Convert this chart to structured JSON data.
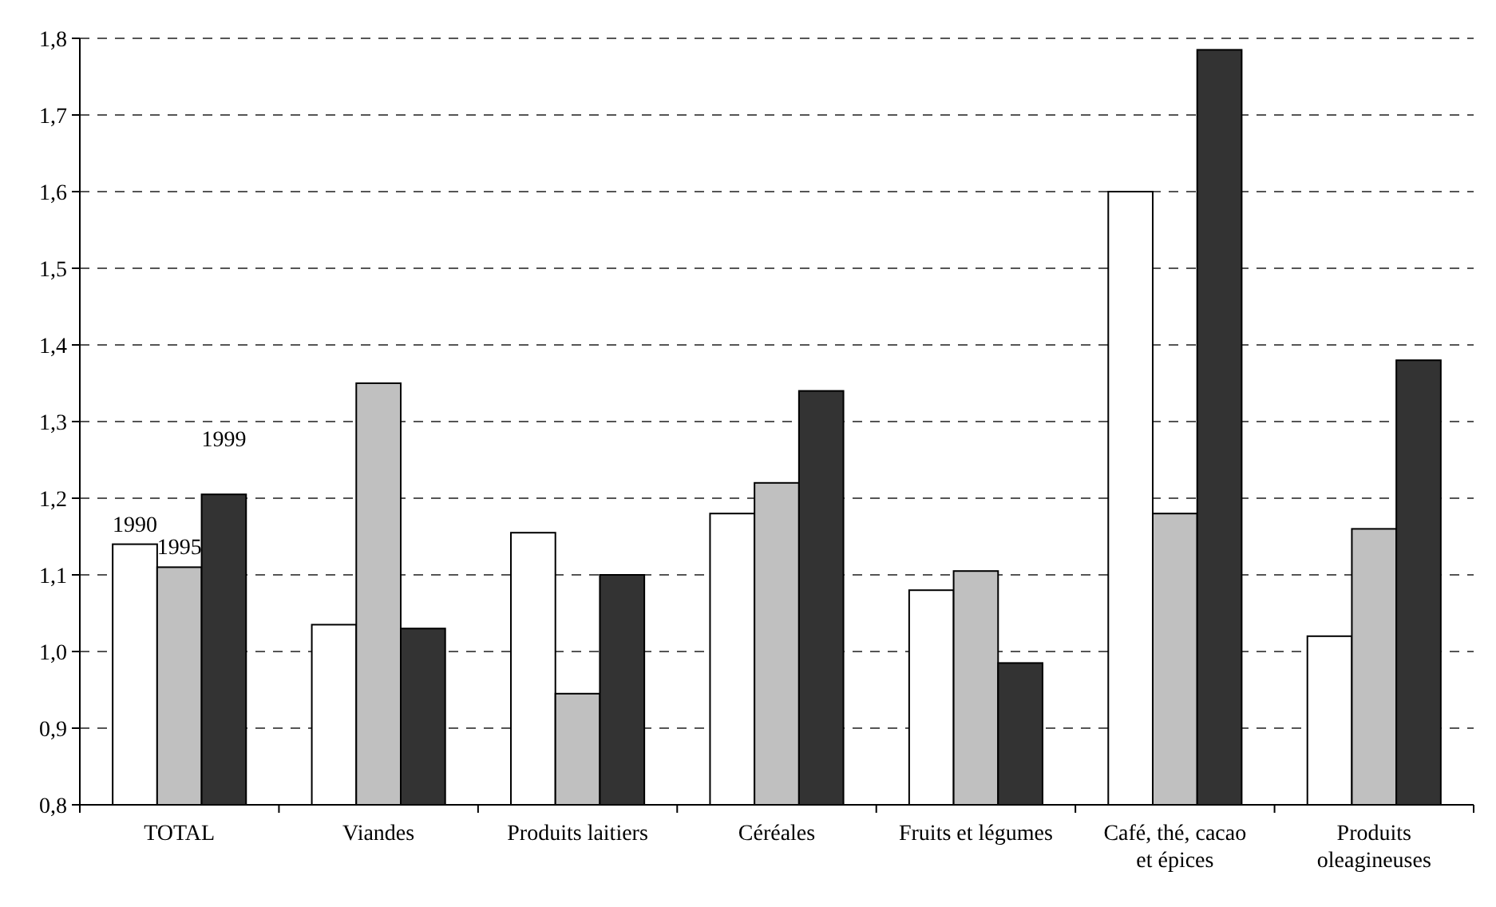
{
  "chart_data": {
    "type": "bar",
    "categories": [
      "TOTAL",
      "Viandes",
      "Produits laitiers",
      "Céréales",
      "Fruits et légumes",
      "Café, thé, cacao et épices",
      "Produits oleagineuses"
    ],
    "series": [
      {
        "name": "1990",
        "color": "#ffffff",
        "values": [
          1.14,
          1.035,
          1.155,
          1.18,
          1.08,
          1.6,
          1.02
        ]
      },
      {
        "name": "1995",
        "color": "#c0c0c0",
        "values": [
          1.11,
          1.35,
          0.945,
          1.22,
          1.105,
          1.18,
          1.16
        ]
      },
      {
        "name": "1999",
        "color": "#333333",
        "values": [
          1.205,
          1.03,
          1.1,
          1.34,
          0.985,
          1.785,
          1.38
        ]
      }
    ],
    "ylim": [
      0.8,
      1.8
    ],
    "yticks": [
      {
        "value": 0.8,
        "label": "0,8"
      },
      {
        "value": 0.9,
        "label": "0,9"
      },
      {
        "value": 1.0,
        "label": "1,0"
      },
      {
        "value": 1.1,
        "label": "1,1"
      },
      {
        "value": 1.2,
        "label": "1,2"
      },
      {
        "value": 1.3,
        "label": "1,3"
      },
      {
        "value": 1.4,
        "label": "1,4"
      },
      {
        "value": 1.5,
        "label": "1,5"
      },
      {
        "value": 1.6,
        "label": "1,6"
      },
      {
        "value": 1.7,
        "label": "1,7"
      },
      {
        "value": 1.8,
        "label": "1,8"
      }
    ],
    "grid": "y"
  }
}
